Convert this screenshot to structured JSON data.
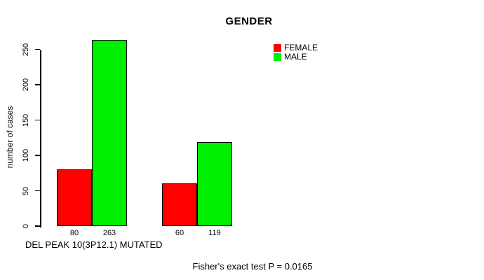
{
  "title": "GENDER",
  "y_axis": {
    "label": "number of cases"
  },
  "x_axis": {
    "label": "DEL PEAK 10(3P12.1) MUTATED"
  },
  "legend": {
    "items": [
      {
        "label": "FEMALE",
        "color": "#FF0000"
      },
      {
        "label": "MALE",
        "color": "#00EE00"
      }
    ]
  },
  "annotation": "Fisher's exact test P = 0.0165",
  "colors": {
    "background": "#FFFFFF",
    "text": "#000000",
    "axis": "#000000",
    "bar_border": "#000000",
    "female": "#FF0000",
    "male": "#00EE00"
  },
  "chart_data": {
    "type": "bar",
    "grouped": true,
    "title": "GENDER",
    "ylabel": "number of cases",
    "xlabel": "DEL PEAK 10(3P12.1) MUTATED",
    "ylim": [
      0,
      250
    ],
    "yticks": [
      0,
      50,
      100,
      150,
      200,
      250
    ],
    "grid": false,
    "legend_position": "top-right",
    "categories": [
      "",
      ""
    ],
    "series": [
      {
        "name": "FEMALE",
        "color": "#FF0000",
        "values": [
          80,
          60
        ]
      },
      {
        "name": "MALE",
        "color": "#00EE00",
        "values": [
          263,
          119
        ]
      }
    ],
    "value_labels_below_bars": [
      [
        "80",
        "263"
      ],
      [
        "60",
        "119"
      ]
    ],
    "annotation": "Fisher's exact test P = 0.0165"
  }
}
